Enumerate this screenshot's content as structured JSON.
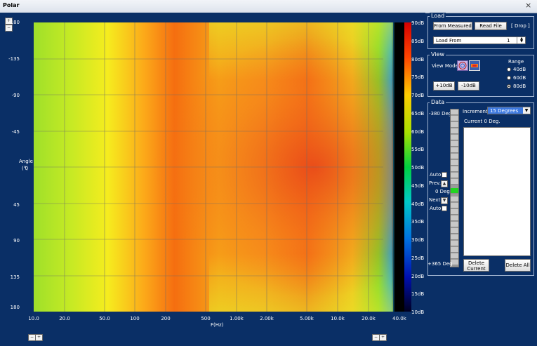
{
  "window": {
    "title": "Polar",
    "close_glyph": "×"
  },
  "plot": {
    "y_axis_title_line1": "Angle",
    "y_axis_title_line2": "(°)",
    "y_ticks": [
      "-180",
      "-135",
      "-90",
      "-45",
      "0",
      "45",
      "90",
      "135",
      "180"
    ],
    "x_axis_title": "F(Hz)",
    "x_ticks": [
      "10.0",
      "20.0",
      "50.0",
      "100",
      "200",
      "500",
      "1.00k",
      "2.00k",
      "5.00k",
      "10.0k",
      "20.0k",
      "40.0k"
    ],
    "colorbar_ticks": [
      "90dB",
      "85dB",
      "80dB",
      "75dB",
      "70dB",
      "65dB",
      "60dB",
      "55dB",
      "50dB",
      "45dB",
      "40dB",
      "35dB",
      "30dB",
      "25dB",
      "20dB",
      "15dB",
      "10dB"
    ]
  },
  "load": {
    "title": "Load",
    "from_measured": "From Measured",
    "read_file": "Read File",
    "drop": "[ Drop ]",
    "load_from_label": "Load From",
    "load_from_value": "1"
  },
  "view": {
    "title": "View",
    "view_mode_label": "View Mode",
    "plus10": "+10dB",
    "minus10": "-10dB",
    "range_label": "Range",
    "range_options": [
      "40dB",
      "60dB",
      "80dB"
    ],
    "range_selected": "80dB"
  },
  "data_panel": {
    "title": "Data",
    "top_label": "-380 Deg",
    "auto_label": "Auto",
    "prev_label": "Prev.",
    "zero_label": "0 Deg",
    "next_label": "Next",
    "auto2_label": "Auto",
    "bottom_label": "+365 Deg",
    "increment_label": "Increment",
    "increment_value": "15 Degrees",
    "current_label": "Current 0 Deg.",
    "delete_current": "Delete Current",
    "delete_all": "Delete All"
  }
}
